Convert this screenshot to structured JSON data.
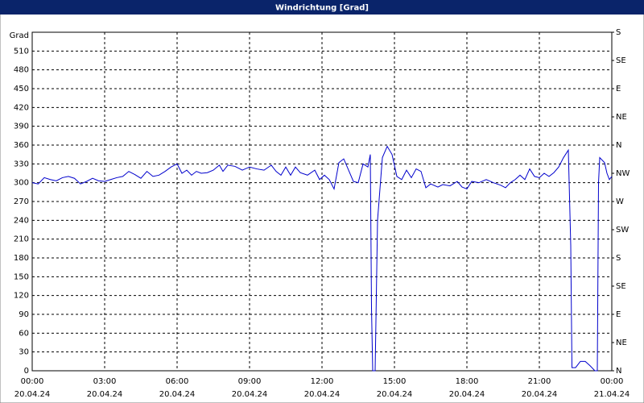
{
  "chart_data": {
    "type": "line",
    "title": "Windrichtung [Grad]",
    "ylabel": "Grad",
    "x": [
      0,
      0.25,
      0.5,
      0.75,
      1,
      1.25,
      1.5,
      1.75,
      2,
      2.25,
      2.5,
      2.75,
      3,
      3.25,
      3.5,
      3.75,
      4,
      4.25,
      4.5,
      4.75,
      5,
      5.25,
      5.5,
      5.75,
      6,
      6.2,
      6.4,
      6.6,
      6.8,
      7,
      7.25,
      7.5,
      7.75,
      7.9,
      8.1,
      8.4,
      8.7,
      9,
      9.3,
      9.6,
      9.9,
      10.1,
      10.3,
      10.5,
      10.7,
      10.9,
      11.1,
      11.4,
      11.7,
      11.9,
      12.1,
      12.3,
      12.5,
      12.7,
      12.9,
      13.1,
      13.3,
      13.5,
      13.7,
      13.9,
      14,
      14.05,
      14.1,
      14.2,
      14.3,
      14.5,
      14.7,
      14.9,
      15.1,
      15.3,
      15.5,
      15.7,
      15.9,
      16.1,
      16.3,
      16.5,
      16.8,
      17,
      17.3,
      17.6,
      17.8,
      18,
      18.2,
      18.5,
      18.8,
      19.1,
      19.4,
      19.6,
      19.8,
      20,
      20.2,
      20.4,
      20.6,
      20.8,
      21,
      21.2,
      21.4,
      21.6,
      21.8,
      22,
      22.2,
      22.3,
      22.35,
      22.5,
      22.7,
      22.9,
      23.1,
      23.3,
      23.4,
      23.45,
      23.5,
      23.7,
      23.8,
      23.9,
      24
    ],
    "series": [
      {
        "name": "Windrichtung",
        "color": "#0000cc",
        "values": [
          300,
          298,
          308,
          305,
          303,
          308,
          310,
          307,
          298,
          302,
          307,
          303,
          302,
          305,
          308,
          310,
          318,
          313,
          307,
          318,
          310,
          312,
          318,
          325,
          330,
          315,
          320,
          312,
          318,
          315,
          316,
          320,
          328,
          318,
          328,
          326,
          320,
          325,
          322,
          320,
          328,
          318,
          312,
          325,
          312,
          325,
          316,
          312,
          320,
          305,
          312,
          305,
          290,
          332,
          338,
          320,
          302,
          300,
          330,
          325,
          345,
          100,
          0,
          0,
          240,
          340,
          358,
          345,
          310,
          305,
          320,
          308,
          322,
          318,
          292,
          298,
          293,
          297,
          295,
          302,
          293,
          290,
          302,
          300,
          305,
          300,
          296,
          292,
          300,
          305,
          312,
          305,
          322,
          310,
          308,
          315,
          310,
          316,
          325,
          340,
          352,
          200,
          5,
          5,
          15,
          15,
          8,
          0,
          0,
          300,
          340,
          332,
          315,
          305,
          310
        ]
      }
    ],
    "xlim": [
      0,
      24
    ],
    "xticks": [
      {
        "value": 0,
        "label": "00:00"
      },
      {
        "value": 3,
        "label": "03:00"
      },
      {
        "value": 6,
        "label": "06:00"
      },
      {
        "value": 9,
        "label": "09:00"
      },
      {
        "value": 12,
        "label": "12:00"
      },
      {
        "value": 15,
        "label": "15:00"
      },
      {
        "value": 18,
        "label": "18:00"
      },
      {
        "value": 21,
        "label": "21:00"
      },
      {
        "value": 24,
        "label": "00:00"
      }
    ],
    "xtick_dates": [
      "20.04.24",
      "20.04.24",
      "20.04.24",
      "20.04.24",
      "20.04.24",
      "20.04.24",
      "20.04.24",
      "20.04.24",
      "21.04.24"
    ],
    "ylim": [
      0,
      540
    ],
    "yticks": [
      0,
      30,
      60,
      90,
      120,
      150,
      180,
      210,
      240,
      270,
      300,
      330,
      360,
      390,
      420,
      450,
      480,
      510
    ],
    "y2lim": [
      0,
      540
    ],
    "y2ticks": [
      {
        "value": 0,
        "label": "N"
      },
      {
        "value": 45,
        "label": "NE"
      },
      {
        "value": 90,
        "label": "E"
      },
      {
        "value": 135,
        "label": "SE"
      },
      {
        "value": 180,
        "label": "S"
      },
      {
        "value": 225,
        "label": "SW"
      },
      {
        "value": 270,
        "label": "W"
      },
      {
        "value": 315,
        "label": "NW"
      },
      {
        "value": 360,
        "label": "N"
      },
      {
        "value": 405,
        "label": "NE"
      },
      {
        "value": 450,
        "label": "E"
      },
      {
        "value": 495,
        "label": "SE"
      },
      {
        "value": 540,
        "label": "S"
      }
    ],
    "grid": true
  }
}
